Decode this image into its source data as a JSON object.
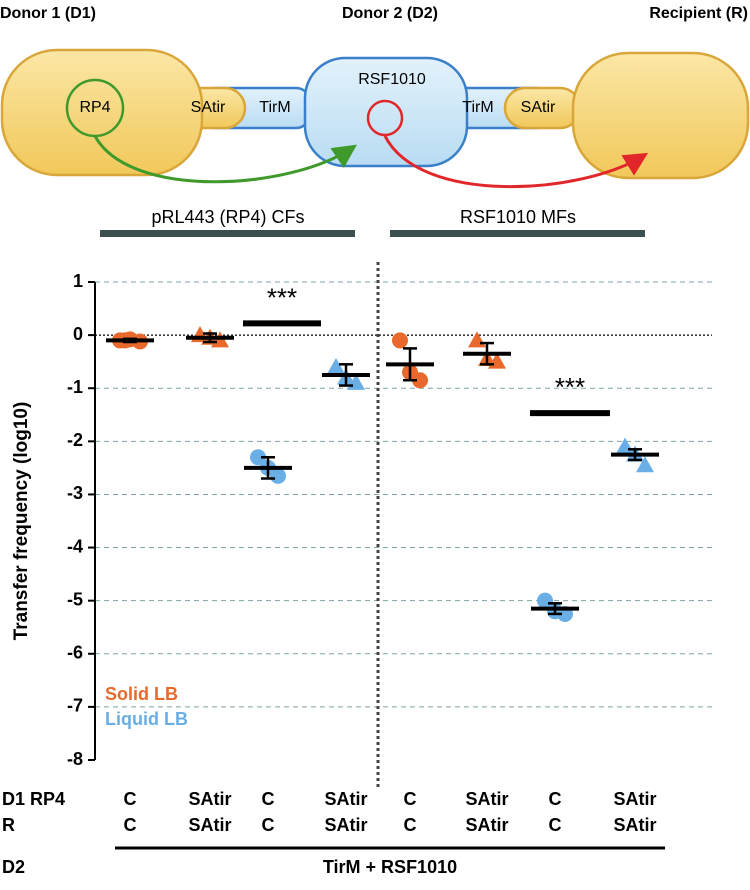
{
  "diagram": {
    "cells": [
      "Donor 1 (D1)",
      "Donor 2 (D2)",
      "Recipient (R)"
    ],
    "parts": {
      "rp4": "RP4",
      "satir_left": "SAtir",
      "tirm_left": "TirM",
      "rsf": "RSF1010",
      "tirm_right": "TirM",
      "satir_right": "SAtir"
    },
    "transfers": [
      "pRL443 (RP4) CFs",
      "RSF1010 MFs"
    ]
  },
  "chart_data": {
    "type": "dotplot",
    "ylabel": "Transfer frequency (log10)",
    "ylim": [
      -8,
      1
    ],
    "yticks": [
      -8,
      -7,
      -6,
      -5,
      -4,
      -3,
      -2,
      -1,
      0,
      1
    ],
    "grid": true,
    "zero_line": true,
    "series": [
      {
        "name": "Solid LB",
        "color": "#e8692b"
      },
      {
        "name": "Liquid LB",
        "color": "#6aaee6"
      }
    ],
    "groups": [
      {
        "series": 0,
        "marker": "circle",
        "mean": -0.1,
        "error": 0.03,
        "points": [
          -0.1,
          -0.12,
          -0.08,
          -0.1
        ]
      },
      {
        "series": 0,
        "marker": "triangle",
        "mean": -0.05,
        "error": 0.08,
        "points": [
          0.0,
          -0.1,
          -0.05
        ]
      },
      {
        "series": 1,
        "marker": "circle",
        "mean": -2.5,
        "error": 0.2,
        "points": [
          -2.3,
          -2.65,
          -2.5
        ]
      },
      {
        "series": 1,
        "marker": "triangle",
        "mean": -0.75,
        "error": 0.2,
        "points": [
          -0.6,
          -0.9,
          -0.8
        ]
      },
      {
        "series": 0,
        "marker": "circle",
        "mean": -0.55,
        "error": 0.3,
        "points": [
          -0.1,
          -0.85,
          -0.7
        ]
      },
      {
        "series": 0,
        "marker": "triangle",
        "mean": -0.35,
        "error": 0.2,
        "points": [
          -0.1,
          -0.5,
          -0.45
        ]
      },
      {
        "series": 1,
        "marker": "circle",
        "mean": -5.15,
        "error": 0.1,
        "points": [
          -5.0,
          -5.25,
          -5.2
        ]
      },
      {
        "series": 1,
        "marker": "triangle",
        "mean": -2.25,
        "error": 0.1,
        "points": [
          -2.1,
          -2.45,
          -2.25
        ]
      }
    ],
    "annotations": [
      {
        "text": "***",
        "y": 0.22,
        "from": 2,
        "to": 3
      },
      {
        "text": "***",
        "y": -1.47,
        "from": 6,
        "to": 7
      }
    ],
    "x_rows": [
      {
        "label": "D1 RP4",
        "values": [
          "C",
          "SAtir",
          "C",
          "SAtir",
          "C",
          "SAtir",
          "C",
          "SAtir"
        ]
      },
      {
        "label": "R",
        "values": [
          "C",
          "SAtir",
          "C",
          "SAtir",
          "C",
          "SAtir",
          "C",
          "SAtir"
        ]
      }
    ],
    "footer": {
      "label": "D2",
      "text": "TirM + RSF1010"
    }
  }
}
